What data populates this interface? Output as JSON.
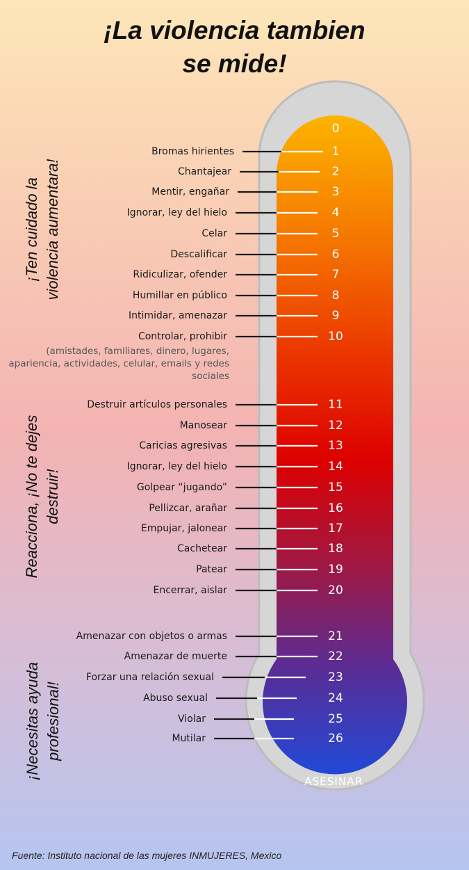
{
  "title": {
    "line1": "¡La violencia tambien",
    "line2": "se mide!"
  },
  "colors": {
    "frame": "#d6d6d6",
    "frame_border": "#bdbdbd",
    "scale_top": "#fdb200",
    "scale_mid": "#e00000",
    "scale_bottom": "#1351e8"
  },
  "sections": [
    {
      "line1": "¡Ten cuidado la",
      "line2": "violencia aumentara!"
    },
    {
      "line1": "Reacciona, ¡No te dejes",
      "line2": "destruir!"
    },
    {
      "line1": "¡Necesitas ayuda",
      "line2": "profesional!"
    }
  ],
  "scale": {
    "zero": "0",
    "items": [
      {
        "n": "1",
        "label": "Bromas hirientes"
      },
      {
        "n": "2",
        "label": "Chantajear"
      },
      {
        "n": "3",
        "label": "Mentir, engañar"
      },
      {
        "n": "4",
        "label": "Ignorar, ley del hielo"
      },
      {
        "n": "5",
        "label": "Celar"
      },
      {
        "n": "6",
        "label": "Descalificar"
      },
      {
        "n": "7",
        "label": "Ridiculizar, ofender"
      },
      {
        "n": "8",
        "label": "Humillar en público"
      },
      {
        "n": "9",
        "label": "Intimidar, amenazar"
      },
      {
        "n": "10",
        "label": "Controlar, prohibir"
      },
      {
        "n": "11",
        "label": "Destruir artículos personales"
      },
      {
        "n": "12",
        "label": "Manosear"
      },
      {
        "n": "13",
        "label": "Caricias agresivas"
      },
      {
        "n": "14",
        "label": "Ignorar, ley del hielo"
      },
      {
        "n": "15",
        "label": "Golpear “jugando”"
      },
      {
        "n": "16",
        "label": "Pellizcar, arañar"
      },
      {
        "n": "17",
        "label": "Empujar, jalonear"
      },
      {
        "n": "18",
        "label": "Cachetear"
      },
      {
        "n": "19",
        "label": "Patear"
      },
      {
        "n": "20",
        "label": "Encerrar, aislar"
      },
      {
        "n": "21",
        "label": "Amenazar con objetos o armas"
      },
      {
        "n": "22",
        "label": "Amenazar de muerte"
      },
      {
        "n": "23",
        "label": "Forzar una relación sexual"
      },
      {
        "n": "24",
        "label": "Abuso sexual"
      },
      {
        "n": "25",
        "label": "Violar"
      },
      {
        "n": "26",
        "label": "Mutilar"
      }
    ],
    "note": "(amistades, familiares, dinero, lugares, apariencia, actividades, celular, emails y redes sociales",
    "end": "ASESINAR"
  },
  "source": "Fuente: Instituto nacional de las mujeres INMUJERES, Mexico"
}
